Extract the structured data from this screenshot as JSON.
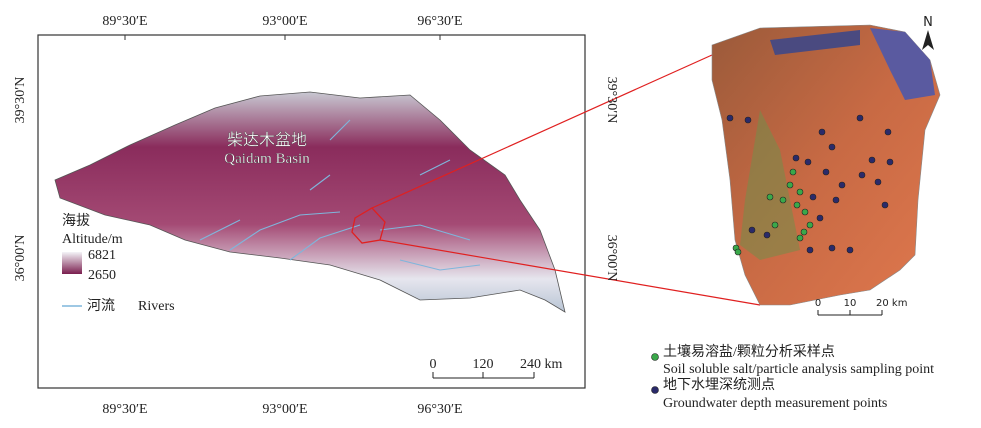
{
  "map": {
    "lon_labels": [
      "89°30′E",
      "93°00′E",
      "96°30′E"
    ],
    "lat_labels": [
      "39°30′N",
      "36°00′N"
    ],
    "basin_name_cn": "柴达木盆地",
    "basin_name_en": "Qaidam Basin",
    "legend": {
      "altitude_cn": "海拔",
      "altitude_en": "Altitude/m",
      "max": "6821",
      "min": "2650",
      "rivers_cn": "河流",
      "rivers_en": "Rivers"
    },
    "scale": [
      "0",
      "120",
      "240 km"
    ]
  },
  "inset": {
    "north": "N",
    "scale": [
      "0",
      "10",
      "20 km"
    ],
    "legend": [
      {
        "cn": "土壤易溶盐/颗粒分析采样点",
        "en": "Soil soluble salt/particle analysis sampling point"
      },
      {
        "cn": "地下水埋深统测点",
        "en": "Groundwater depth measurement points"
      }
    ]
  }
}
